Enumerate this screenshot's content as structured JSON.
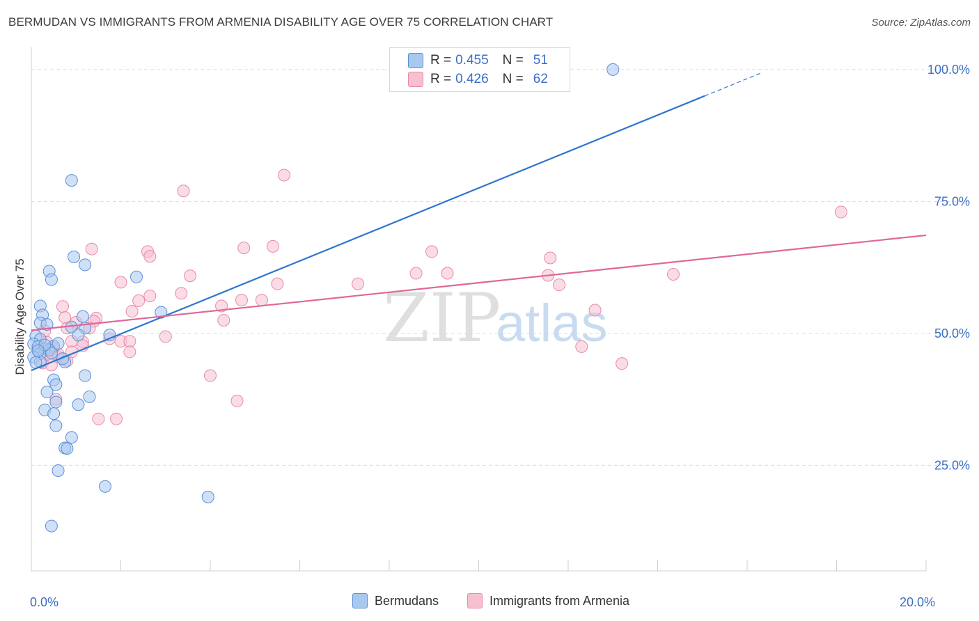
{
  "title": "BERMUDAN VS IMMIGRANTS FROM ARMENIA DISABILITY AGE OVER 75 CORRELATION CHART",
  "source": "Source: ZipAtlas.com",
  "watermark": {
    "zip": "ZIP",
    "atlas": "atlas"
  },
  "legend": [
    {
      "r_label": "R =",
      "r_value": "0.455",
      "n_label": "N =",
      "n_value": "51"
    },
    {
      "r_label": "R =",
      "r_value": "0.426",
      "n_label": "N =",
      "n_value": "62"
    }
  ],
  "bottom_legend": [
    "Bermudans",
    "Immigrants from Armenia"
  ],
  "colors": {
    "blue_fill": "#a9c8f0",
    "blue_stroke": "#5b8fd6",
    "blue_line": "#2f74d0",
    "pink_fill": "#f6c0d1",
    "pink_stroke": "#e88aa8",
    "pink_line": "#e0679a",
    "tick_label": "#3a6fc4",
    "grid": "#dcdcdc"
  },
  "chart_data": {
    "type": "scatter",
    "title": "BERMUDAN VS IMMIGRANTS FROM ARMENIA DISABILITY AGE OVER 75 CORRELATION CHART",
    "xlabel": "",
    "ylabel": "Disability Age Over 75",
    "xlim": [
      0,
      20
    ],
    "ylim": [
      5,
      105
    ],
    "x_tick_labels": [
      {
        "value": 0,
        "label": "0.0%"
      },
      {
        "value": 20,
        "label": "20.0%"
      }
    ],
    "y_tick_labels": [
      {
        "value": 100,
        "label": "100.0%"
      },
      {
        "value": 75,
        "label": "75.0%"
      },
      {
        "value": 50,
        "label": "50.0%"
      },
      {
        "value": 25,
        "label": "25.0%"
      }
    ],
    "series": [
      {
        "name": "Bermudans",
        "color": "blue",
        "points": [
          [
            13.0,
            100.0
          ],
          [
            0.9,
            79.0
          ],
          [
            0.95,
            64.5
          ],
          [
            1.2,
            63.0
          ],
          [
            0.4,
            61.8
          ],
          [
            2.35,
            60.7
          ],
          [
            0.45,
            60.2
          ],
          [
            0.2,
            55.2
          ],
          [
            0.25,
            53.5
          ],
          [
            1.15,
            53.2
          ],
          [
            2.9,
            54.0
          ],
          [
            0.2,
            52.0
          ],
          [
            0.35,
            51.7
          ],
          [
            0.9,
            51.2
          ],
          [
            1.2,
            51.0
          ],
          [
            1.75,
            49.7
          ],
          [
            1.05,
            49.7
          ],
          [
            0.1,
            49.5
          ],
          [
            0.2,
            48.9
          ],
          [
            0.05,
            48.0
          ],
          [
            0.15,
            47.5
          ],
          [
            0.5,
            47.6
          ],
          [
            0.3,
            47.1
          ],
          [
            0.4,
            46.9
          ],
          [
            0.2,
            46.2
          ],
          [
            0.45,
            46.3
          ],
          [
            0.05,
            45.5
          ],
          [
            0.2,
            44.6
          ],
          [
            0.1,
            44.5
          ],
          [
            0.75,
            44.6
          ],
          [
            1.2,
            42.0
          ],
          [
            0.5,
            41.2
          ],
          [
            0.55,
            40.3
          ],
          [
            0.35,
            38.9
          ],
          [
            1.3,
            38.0
          ],
          [
            0.55,
            37.0
          ],
          [
            1.05,
            36.5
          ],
          [
            0.3,
            35.5
          ],
          [
            0.5,
            34.8
          ],
          [
            0.55,
            32.5
          ],
          [
            0.9,
            30.3
          ],
          [
            0.75,
            28.3
          ],
          [
            0.8,
            28.2
          ],
          [
            0.6,
            24.0
          ],
          [
            1.65,
            21.0
          ],
          [
            3.95,
            19.0
          ],
          [
            0.45,
            13.5
          ],
          [
            0.3,
            47.8
          ],
          [
            0.6,
            48.1
          ],
          [
            0.15,
            46.7
          ],
          [
            0.7,
            45.2
          ]
        ]
      },
      {
        "name": "Immigrants from Armenia",
        "color": "pink",
        "points": [
          [
            5.65,
            80.0
          ],
          [
            3.4,
            77.0
          ],
          [
            18.1,
            73.0
          ],
          [
            1.35,
            66.0
          ],
          [
            4.75,
            66.2
          ],
          [
            5.4,
            66.5
          ],
          [
            2.6,
            65.5
          ],
          [
            2.65,
            64.6
          ],
          [
            8.95,
            65.5
          ],
          [
            11.6,
            64.3
          ],
          [
            3.55,
            60.9
          ],
          [
            8.6,
            61.4
          ],
          [
            9.3,
            61.4
          ],
          [
            11.55,
            61.0
          ],
          [
            14.35,
            61.2
          ],
          [
            2.0,
            59.7
          ],
          [
            5.5,
            59.4
          ],
          [
            7.3,
            59.4
          ],
          [
            11.8,
            59.2
          ],
          [
            3.35,
            57.6
          ],
          [
            2.65,
            57.1
          ],
          [
            2.4,
            56.2
          ],
          [
            4.7,
            56.3
          ],
          [
            5.15,
            56.3
          ],
          [
            4.25,
            55.2
          ],
          [
            0.7,
            55.1
          ],
          [
            12.6,
            54.4
          ],
          [
            2.25,
            54.2
          ],
          [
            0.75,
            53.0
          ],
          [
            1.45,
            52.9
          ],
          [
            1.4,
            52.3
          ],
          [
            4.3,
            52.5
          ],
          [
            1.0,
            52.1
          ],
          [
            0.8,
            51.0
          ],
          [
            1.3,
            51.0
          ],
          [
            0.3,
            50.5
          ],
          [
            3.0,
            49.4
          ],
          [
            1.75,
            49.0
          ],
          [
            0.9,
            48.5
          ],
          [
            2.0,
            48.5
          ],
          [
            2.2,
            48.5
          ],
          [
            1.15,
            48.4
          ],
          [
            0.35,
            48.3
          ],
          [
            1.15,
            47.7
          ],
          [
            0.5,
            47.3
          ],
          [
            0.4,
            46.6
          ],
          [
            0.9,
            46.5
          ],
          [
            2.2,
            46.5
          ],
          [
            0.35,
            46.0
          ],
          [
            0.6,
            45.5
          ],
          [
            0.8,
            44.8
          ],
          [
            12.3,
            47.5
          ],
          [
            0.25,
            44.4
          ],
          [
            0.45,
            44.0
          ],
          [
            13.2,
            44.3
          ],
          [
            4.0,
            42.0
          ],
          [
            0.55,
            37.5
          ],
          [
            4.6,
            37.2
          ],
          [
            1.5,
            33.8
          ],
          [
            1.9,
            33.8
          ],
          [
            0.6,
            46.1
          ],
          [
            0.15,
            47.0
          ]
        ]
      }
    ],
    "trendlines": [
      {
        "series": "Bermudans",
        "x0": 0,
        "y0": 43.0,
        "x1": 15.05,
        "y1": 95.0,
        "dashed_to_x": 16.3,
        "dashed_to_y": 99.3
      },
      {
        "series": "Immigrants from Armenia",
        "x0": 0,
        "y0": 50.6,
        "x1": 20.0,
        "y1": 68.6
      }
    ]
  }
}
